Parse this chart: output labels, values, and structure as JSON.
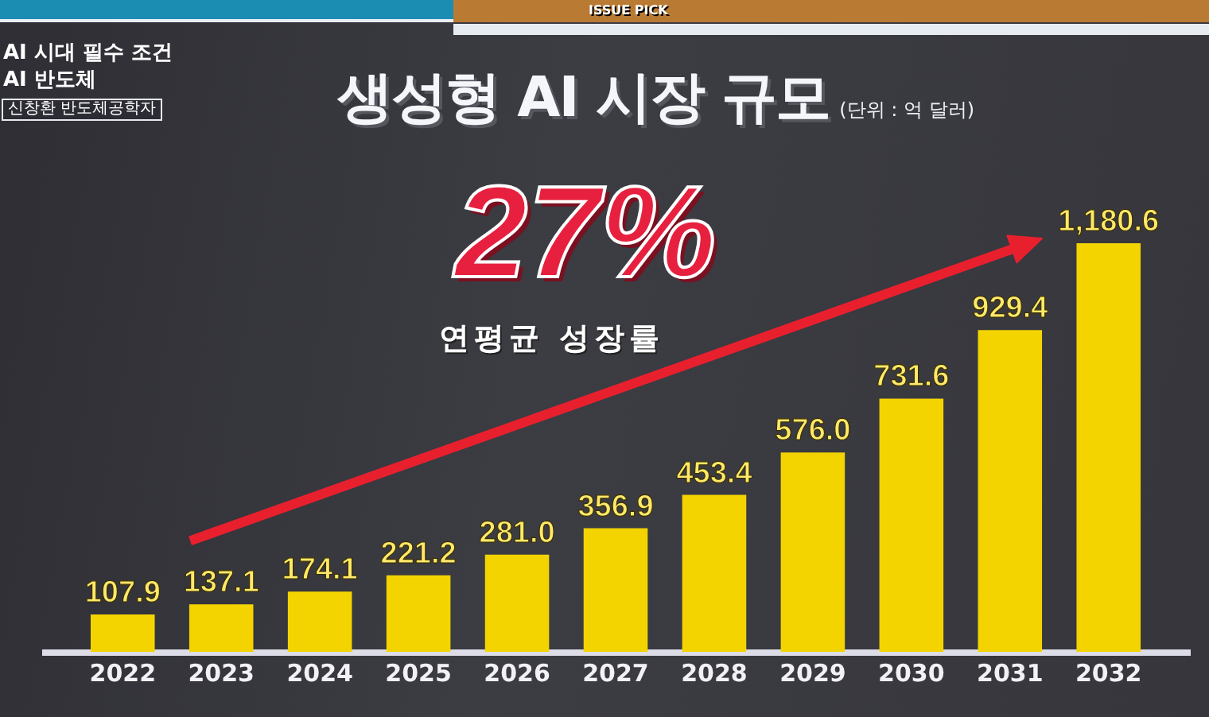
{
  "chart_data": {
    "type": "bar",
    "title": "생성형 AI 시장 규모",
    "subtitle": "(단위 : 억 달러)",
    "categories": [
      "2022",
      "2023",
      "2024",
      "2025",
      "2026",
      "2027",
      "2028",
      "2029",
      "2030",
      "2031",
      "2032"
    ],
    "values": [
      107.9,
      137.1,
      174.1,
      221.2,
      281.0,
      356.9,
      453.4,
      576.0,
      731.6,
      929.4,
      1180.6
    ],
    "value_labels": [
      "107.9",
      "137.1",
      "174.1",
      "221.2",
      "281.0",
      "356.9",
      "453.4",
      "576.0",
      "731.6",
      "929.4",
      "1,180.6"
    ],
    "color": "#f4d400",
    "tick_labels": "x",
    "annotations": [
      "27%",
      "연평균 성장률",
      "AI 시대 필수 조건",
      "AI 반도체",
      "신창환 반도체공학자",
      "ISSUE PICK"
    ]
  }
}
